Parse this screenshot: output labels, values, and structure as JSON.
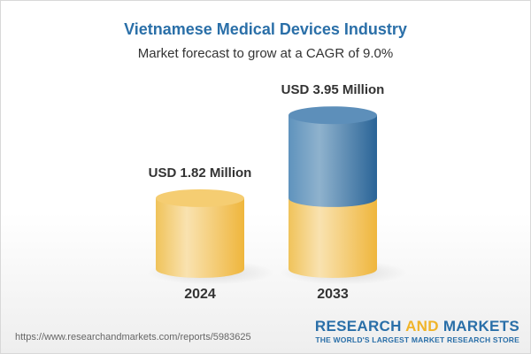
{
  "title": "Vietnamese Medical Devices Industry",
  "subtitle": "Market forecast to grow at a CAGR of 9.0%",
  "chart_data": {
    "type": "bar",
    "style": "3d-cylinder",
    "categories": [
      "2024",
      "2033"
    ],
    "values": [
      1.82,
      3.95
    ],
    "data_labels": [
      "USD 1.82 Million",
      "USD 3.95 Million"
    ],
    "unit": "USD Million",
    "cagr": "9.0%",
    "colors": {
      "base": "#f2c45a",
      "growth": "#3f7cb0"
    }
  },
  "footer": {
    "url": "https://www.researchandmarkets.com/reports/5983625",
    "logo_part1": "RESEARCH ",
    "logo_part2": "AND",
    "logo_part3": " MARKETS",
    "tagline": "THE WORLD'S LARGEST MARKET RESEARCH STORE"
  }
}
